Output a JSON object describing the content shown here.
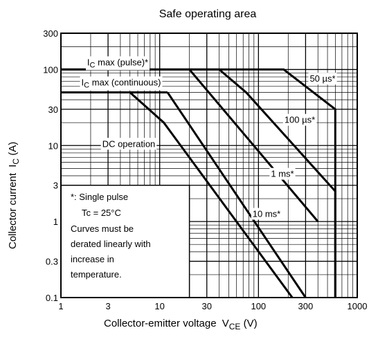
{
  "chart_data": {
    "type": "line",
    "title": "Safe operating area",
    "xlabel": {
      "main": "Collector-emitter voltage",
      "symbol": "V",
      "subscript": "CE",
      "unit": "(V)"
    },
    "ylabel": {
      "main": "Collector current",
      "symbol": "I",
      "subscript": "C",
      "unit": "(A)"
    },
    "x_scale": "log",
    "y_scale": "log",
    "xlim": [
      1,
      1000
    ],
    "ylim": [
      0.1,
      300
    ],
    "x_ticks": [
      {
        "value": 1,
        "label": "1"
      },
      {
        "value": 3,
        "label": "3"
      },
      {
        "value": 10,
        "label": "10"
      },
      {
        "value": 30,
        "label": "30"
      },
      {
        "value": 100,
        "label": "100"
      },
      {
        "value": 300,
        "label": "300"
      },
      {
        "value": 1000,
        "label": "1000"
      }
    ],
    "y_ticks": [
      {
        "value": 0.1,
        "label": "0.1"
      },
      {
        "value": 0.3,
        "label": "0.3"
      },
      {
        "value": 1,
        "label": "1"
      },
      {
        "value": 3,
        "label": "3"
      },
      {
        "value": 10,
        "label": "10"
      },
      {
        "value": 30,
        "label": "30"
      },
      {
        "value": 100,
        "label": "100"
      },
      {
        "value": 300,
        "label": "300"
      }
    ],
    "grid": true,
    "series": [
      {
        "name": "50 µs*",
        "points": [
          [
            1,
            100
          ],
          [
            180,
            100
          ],
          [
            600,
            30
          ],
          [
            600,
            0.1
          ]
        ]
      },
      {
        "name": "100 µs*",
        "points": [
          [
            1,
            100
          ],
          [
            40,
            100
          ],
          [
            75,
            50
          ],
          [
            600,
            2.5
          ],
          [
            600,
            0.1
          ]
        ]
      },
      {
        "name": "1 ms*",
        "points": [
          [
            20,
            100
          ],
          [
            400,
            1
          ]
        ]
      },
      {
        "name": "10 ms*",
        "points": [
          [
            12,
            50
          ],
          [
            300,
            0.1
          ]
        ]
      },
      {
        "name": "DC operation",
        "points": [
          [
            5,
            50
          ],
          [
            11,
            20
          ],
          [
            220,
            0.1
          ]
        ]
      },
      {
        "name": "IC max (continuous)",
        "points": [
          [
            1,
            50
          ],
          [
            12,
            50
          ]
        ]
      }
    ],
    "annotations": {
      "ic_max_pulse": {
        "prefix": "I",
        "sub": "C",
        "suffix": " max (pulse)*"
      },
      "ic_max_continuous": {
        "prefix": "I",
        "sub": "C",
        "suffix": " max (continuous)"
      },
      "note_lines": [
        "*: Single pulse",
        "Tc = 25°C",
        "Curves must be",
        "derated linearly with",
        "increase in",
        "temperature."
      ]
    }
  }
}
